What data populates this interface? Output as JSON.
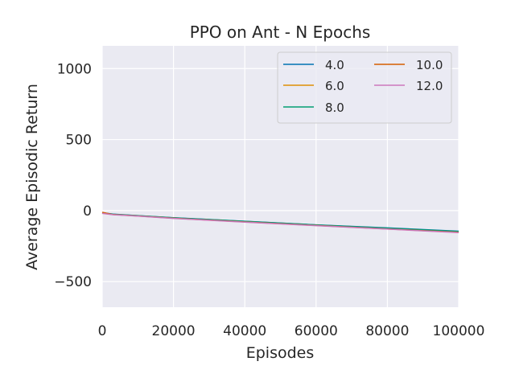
{
  "chart_data": {
    "type": "line",
    "title": "PPO on Ant - N Epochs",
    "xlabel": "Episodes",
    "ylabel": "Average Episodic Return",
    "xlim": [
      0,
      100000
    ],
    "ylim": [
      -680,
      1160
    ],
    "xticks": [
      0,
      20000,
      40000,
      60000,
      80000,
      100000
    ],
    "xtick_labels": [
      "0",
      "20000",
      "40000",
      "60000",
      "80000",
      "100000"
    ],
    "yticks": [
      -500,
      0,
      500,
      1000
    ],
    "ytick_labels": [
      "−500",
      "0",
      "500",
      "1000"
    ],
    "grid": true,
    "legend_position": "top-right",
    "legend_columns": 2,
    "series": [
      {
        "name": "4.0",
        "color": "#0173b2",
        "x": [
          0,
          3000,
          10000,
          20000,
          40000,
          60000,
          80000,
          100000
        ],
        "y": [
          -15,
          -25,
          -35,
          -50,
          -75,
          -100,
          -122,
          -145
        ]
      },
      {
        "name": "6.0",
        "color": "#de8f05",
        "x": [
          0,
          3000,
          10000,
          20000,
          40000,
          60000,
          80000,
          100000
        ],
        "y": [
          -18,
          -27,
          -37,
          -52,
          -78,
          -103,
          -126,
          -150
        ]
      },
      {
        "name": "8.0",
        "color": "#029e73",
        "x": [
          0,
          3000,
          10000,
          20000,
          40000,
          60000,
          80000,
          100000
        ],
        "y": [
          -16,
          -26,
          -36,
          -51,
          -76,
          -101,
          -124,
          -147
        ]
      },
      {
        "name": "10.0",
        "color": "#d55e00",
        "x": [
          0,
          3000,
          10000,
          20000,
          40000,
          60000,
          80000,
          100000
        ],
        "y": [
          -12,
          -28,
          -38,
          -54,
          -80,
          -105,
          -129,
          -153
        ]
      },
      {
        "name": "12.0",
        "color": "#cc78bc",
        "x": [
          0,
          3000,
          10000,
          20000,
          40000,
          60000,
          80000,
          100000
        ],
        "y": [
          -20,
          -29,
          -39,
          -55,
          -81,
          -106,
          -130,
          -155
        ]
      }
    ]
  }
}
